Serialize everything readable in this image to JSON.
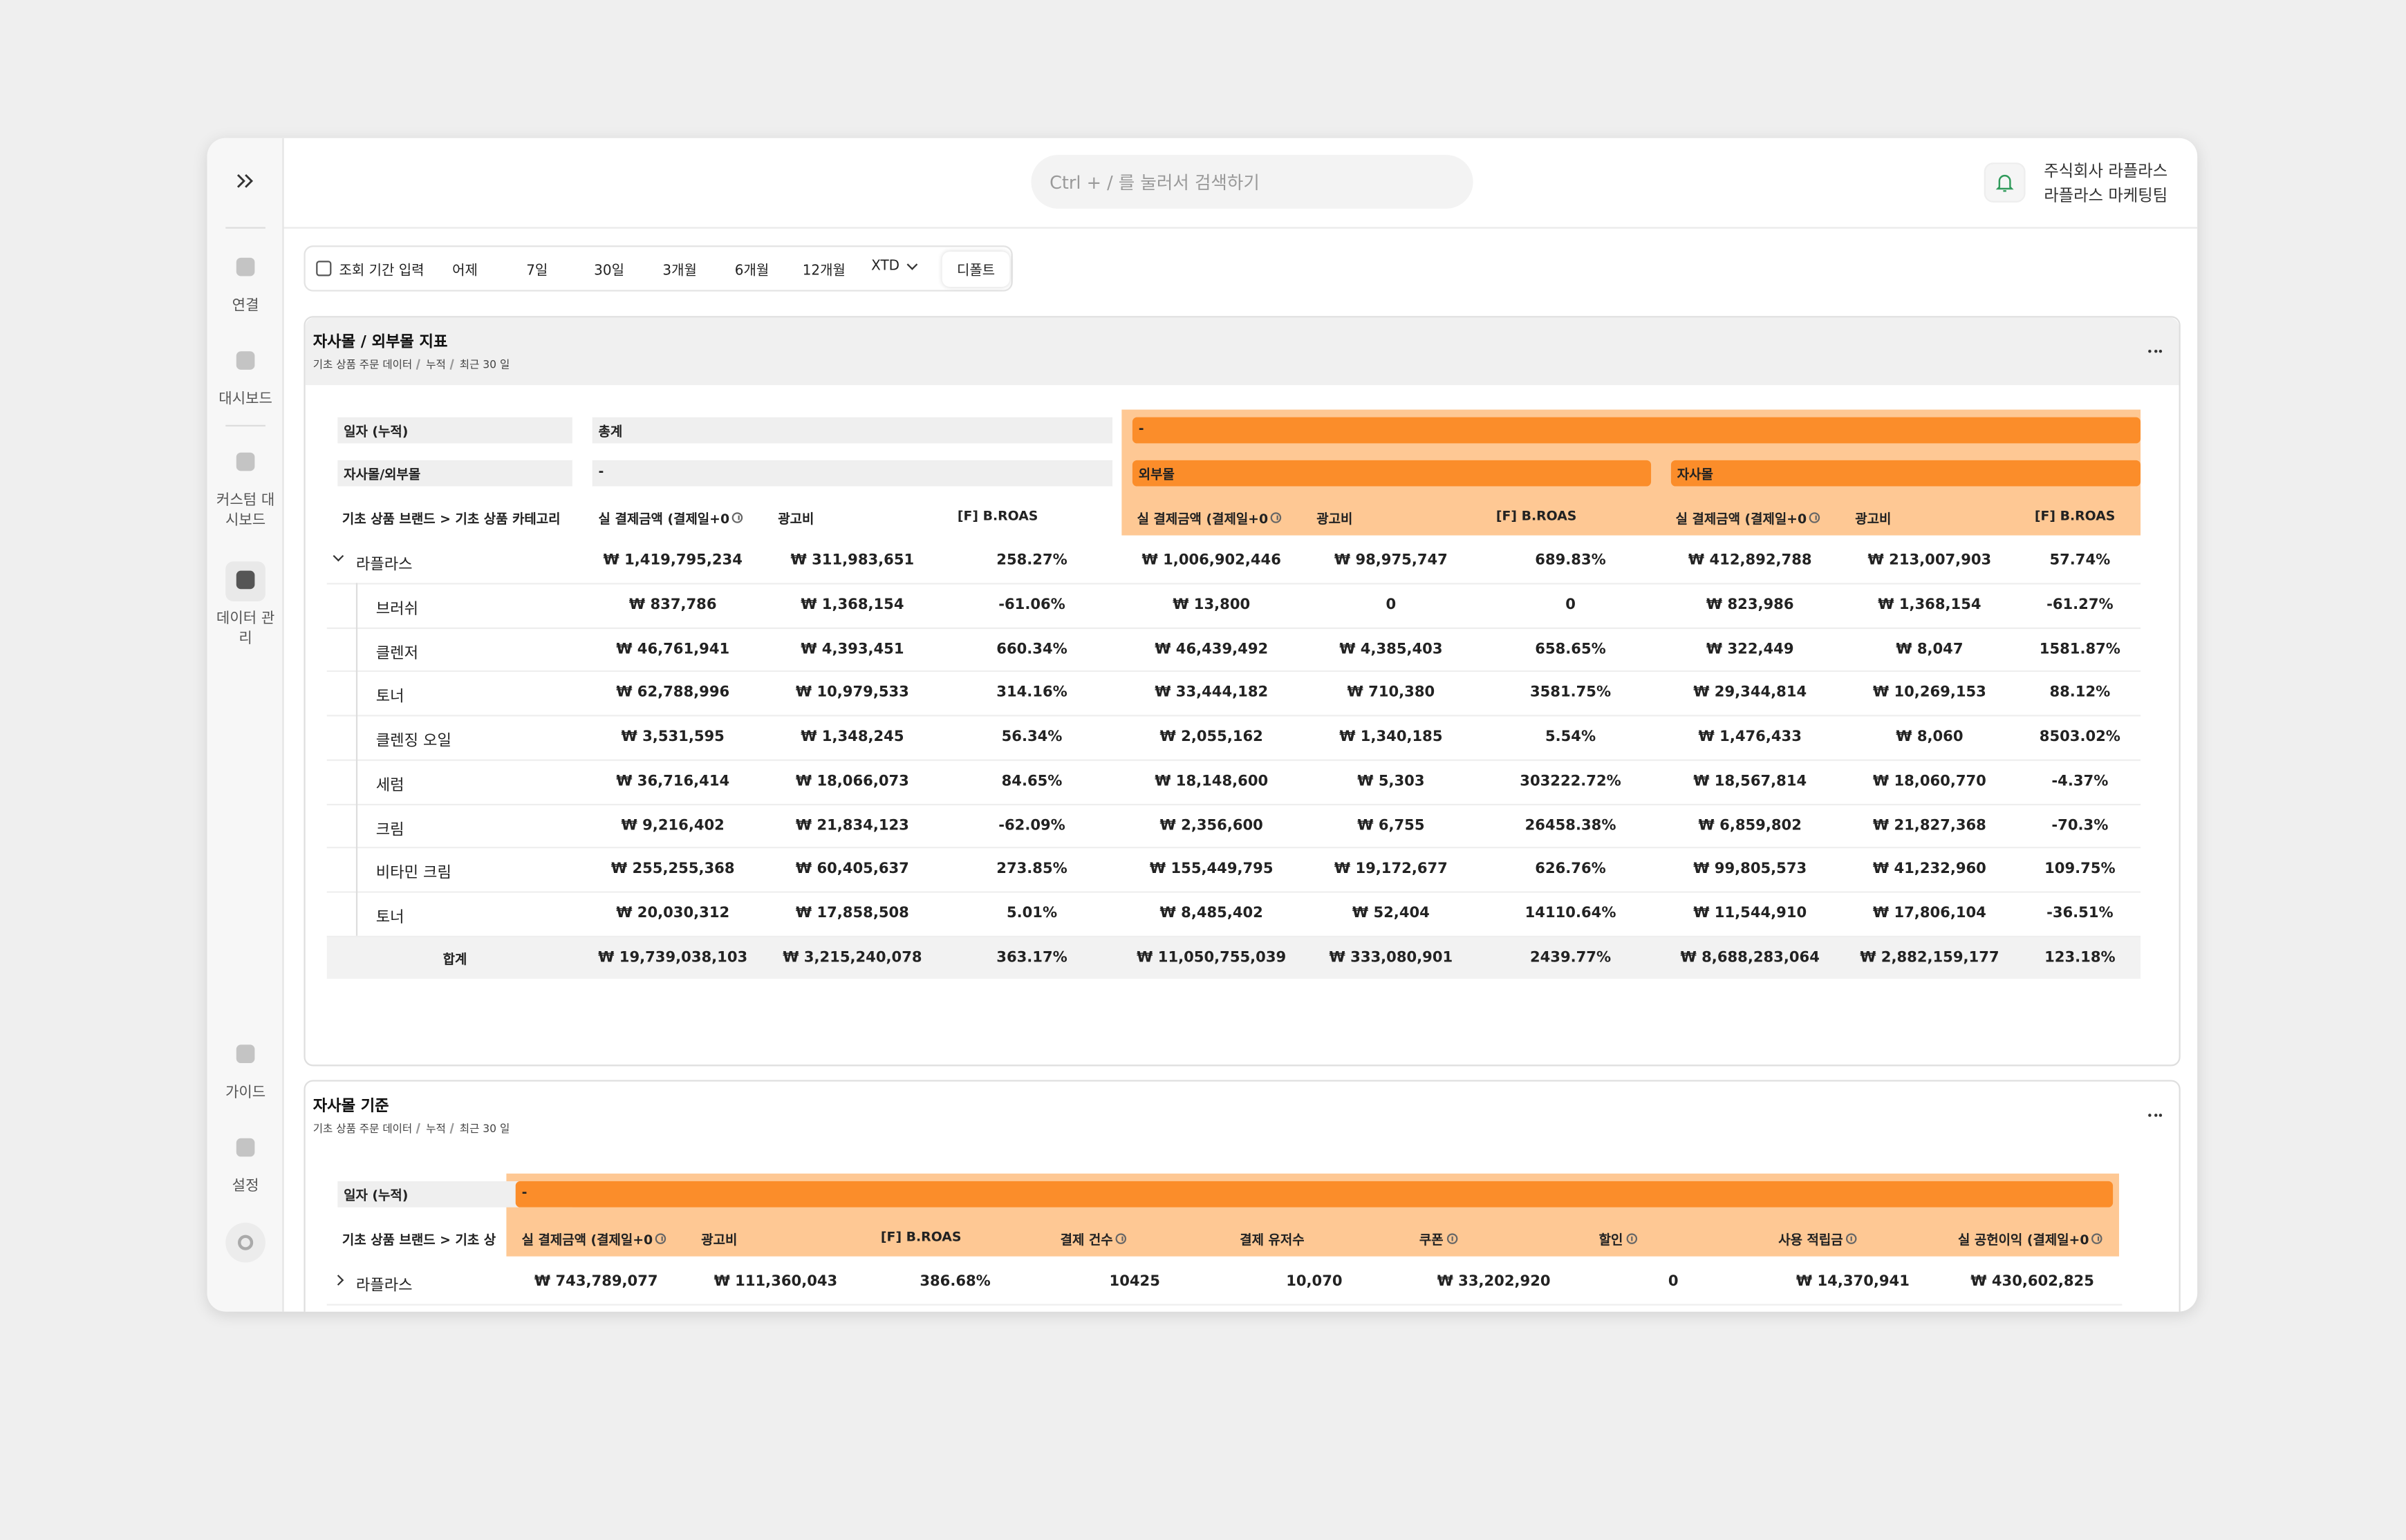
{
  "sidebar": {
    "items": [
      "연결",
      "대시보드",
      "커스텀 대시보드",
      "데이터 관리",
      "가이드",
      "설정"
    ]
  },
  "header": {
    "search_placeholder": "Ctrl + / 를 눌러서 검색하기",
    "company": "주식회사 라플라스",
    "team": "라플라스 마케팅팀"
  },
  "period_bar": {
    "items": [
      "조회 기간 입력",
      "어제",
      "7일",
      "30일",
      "3개월",
      "6개월",
      "12개월",
      "XTD",
      "디폴트"
    ]
  },
  "cards": [
    {
      "title": "자사몰 / 외부몰 지표",
      "breadcrumb": [
        "기초 상품 주문 데이터",
        "누적",
        "최근 30 일"
      ],
      "table": {
        "header_rows": [
          {
            "label": "일자 (누적)",
            "groups": [
              "총계",
              "-"
            ]
          },
          {
            "label": "자사몰/외부몰",
            "groups": [
              "-",
              "외부몰",
              "자사몰"
            ]
          }
        ],
        "column_label": "기초 상품 브랜드 > 기초 상품 카테고리",
        "columns": [
          "실 결제금액 (결제일+0",
          "광고비",
          "[F] B.ROAS",
          "실 결제금액 (결제일+0",
          "광고비",
          "[F] B.ROAS",
          "실 결제금액 (결제일+0",
          "광고비",
          "[F] B.ROAS"
        ],
        "rows": [
          {
            "name": "라플라스",
            "values": [
              "₩ 1,419,795,234",
              "₩ 311,983,651",
              "258.27%",
              "₩ 1,006,902,446",
              "₩ 98,975,747",
              "689.83%",
              "₩ 412,892,788",
              "₩ 213,007,903",
              "57.74%"
            ]
          },
          {
            "name": "브러쉬",
            "values": [
              "₩ 837,786",
              "₩ 1,368,154",
              "-61.06%",
              "₩ 13,800",
              "0",
              "0",
              "₩ 823,986",
              "₩ 1,368,154",
              "-61.27%"
            ]
          },
          {
            "name": "클렌저",
            "values": [
              "₩ 46,761,941",
              "₩ 4,393,451",
              "660.34%",
              "₩ 46,439,492",
              "₩ 4,385,403",
              "658.65%",
              "₩ 322,449",
              "₩ 8,047",
              "1581.87%"
            ]
          },
          {
            "name": "토너",
            "values": [
              "₩ 62,788,996",
              "₩ 10,979,533",
              "314.16%",
              "₩ 33,444,182",
              "₩ 710,380",
              "3581.75%",
              "₩ 29,344,814",
              "₩ 10,269,153",
              "88.12%"
            ]
          },
          {
            "name": "클렌징 오일",
            "values": [
              "₩ 3,531,595",
              "₩ 1,348,245",
              "56.34%",
              "₩ 2,055,162",
              "₩ 1,340,185",
              "5.54%",
              "₩ 1,476,433",
              "₩ 8,060",
              "8503.02%"
            ]
          },
          {
            "name": "세럼",
            "values": [
              "₩ 36,716,414",
              "₩ 18,066,073",
              "84.65%",
              "₩ 18,148,600",
              "₩ 5,303",
              "303222.72%",
              "₩ 18,567,814",
              "₩ 18,060,770",
              "-4.37%"
            ]
          },
          {
            "name": "크림",
            "values": [
              "₩ 9,216,402",
              "₩ 21,834,123",
              "-62.09%",
              "₩ 2,356,600",
              "₩ 6,755",
              "26458.38%",
              "₩ 6,859,802",
              "₩ 21,827,368",
              "-70.3%"
            ]
          },
          {
            "name": "비타민 크림",
            "values": [
              "₩ 255,255,368",
              "₩ 60,405,637",
              "273.85%",
              "₩ 155,449,795",
              "₩ 19,172,677",
              "626.76%",
              "₩ 99,805,573",
              "₩ 41,232,960",
              "109.75%"
            ]
          },
          {
            "name": "토너",
            "values": [
              "₩ 20,030,312",
              "₩ 17,858,508",
              "5.01%",
              "₩ 8,485,402",
              "₩ 52,404",
              "14110.64%",
              "₩ 11,544,910",
              "₩ 17,806,104",
              "-36.51%"
            ]
          },
          {
            "name": "합계",
            "values": [
              "₩ 19,739,038,103",
              "₩ 3,215,240,078",
              "363.17%",
              "₩ 11,050,755,039",
              "₩ 333,080,901",
              "2439.77%",
              "₩ 8,688,283,064",
              "₩ 2,882,159,177",
              "123.18%"
            ]
          }
        ]
      }
    },
    {
      "title": "자사몰 기준",
      "breadcrumb": [
        "기초 상품 주문 데이터",
        "누적",
        "최근 30 일"
      ],
      "table": {
        "header_rows": [
          {
            "label": "일자 (누적)",
            "groups": [
              "-"
            ]
          }
        ],
        "column_label": "기초 상품 브랜드 > 기초 상",
        "columns": [
          "실 결제금액 (결제일+0",
          "광고비",
          "[F] B.ROAS",
          "결제 건수",
          "결제 유저수",
          "쿠폰",
          "할인",
          "사용 적립금",
          "실 공헌이익 (결제일+0"
        ],
        "rows": [
          {
            "name": "라플라스",
            "values": [
              "₩ 743,789,077",
              "₩ 111,360,043",
              "386.68%",
              "10425",
              "10,070",
              "₩ 33,202,920",
              "0",
              "₩ 14,370,941",
              "₩ 430,602,825"
            ]
          }
        ]
      }
    }
  ]
}
